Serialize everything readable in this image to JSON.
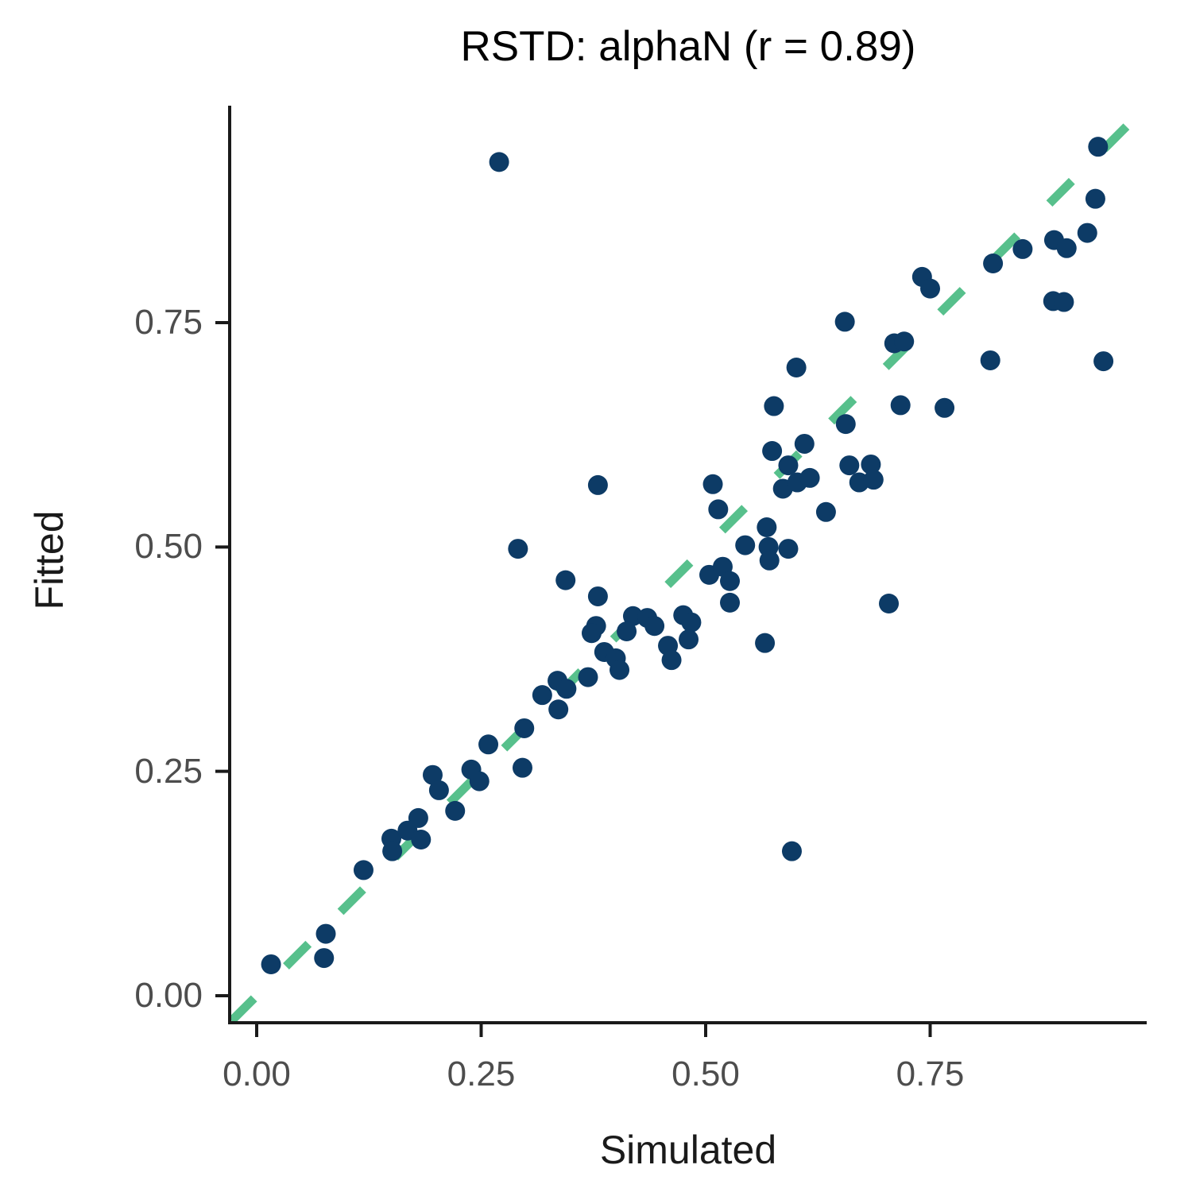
{
  "title": "RSTD: alphaN (r = 0.89)",
  "axes": {
    "x": {
      "label": "Simulated",
      "tick_labels": [
        "0.00",
        "0.25",
        "0.50",
        "0.75"
      ],
      "tick_values": [
        0,
        0.25,
        0.5,
        0.75
      ]
    },
    "y": {
      "label": "Fitted",
      "tick_labels": [
        "0.00",
        "0.25",
        "0.50",
        "0.75"
      ],
      "tick_values": [
        0,
        0.25,
        0.5,
        0.75
      ]
    }
  },
  "colors": {
    "point": "#0d3b66",
    "identity_line": "#57c08c",
    "axis": "#1a1a1a",
    "tick_text": "#4d4d4d",
    "background": "#ffffff"
  },
  "chart_data": {
    "type": "scatter",
    "title": "RSTD: alphaN (r = 0.89)",
    "xlabel": "Simulated",
    "ylabel": "Fitted",
    "r_value": 0.89,
    "xlim": [
      -0.03,
      0.99
    ],
    "ylim": [
      -0.03,
      0.99
    ],
    "grid": false,
    "legend": "none",
    "identity_line": {
      "style": "dashed",
      "from": [
        -0.028,
        -0.028
      ],
      "to": [
        0.978,
        0.978
      ]
    },
    "points": [
      [
        0.016,
        0.035
      ],
      [
        0.075,
        0.042
      ],
      [
        0.077,
        0.069
      ],
      [
        0.119,
        0.14
      ],
      [
        0.15,
        0.175
      ],
      [
        0.151,
        0.161
      ],
      [
        0.168,
        0.184
      ],
      [
        0.18,
        0.198
      ],
      [
        0.183,
        0.174
      ],
      [
        0.196,
        0.246
      ],
      [
        0.203,
        0.229
      ],
      [
        0.221,
        0.206
      ],
      [
        0.239,
        0.252
      ],
      [
        0.248,
        0.239
      ],
      [
        0.258,
        0.28
      ],
      [
        0.296,
        0.254
      ],
      [
        0.298,
        0.298
      ],
      [
        0.318,
        0.335
      ],
      [
        0.335,
        0.351
      ],
      [
        0.345,
        0.342
      ],
      [
        0.336,
        0.319
      ],
      [
        0.369,
        0.355
      ],
      [
        0.387,
        0.383
      ],
      [
        0.4,
        0.376
      ],
      [
        0.404,
        0.363
      ],
      [
        0.291,
        0.498
      ],
      [
        0.344,
        0.463
      ],
      [
        0.38,
        0.569
      ],
      [
        0.38,
        0.445
      ],
      [
        0.378,
        0.412
      ],
      [
        0.373,
        0.404
      ],
      [
        0.419,
        0.423
      ],
      [
        0.412,
        0.406
      ],
      [
        0.435,
        0.421
      ],
      [
        0.443,
        0.412
      ],
      [
        0.475,
        0.424
      ],
      [
        0.484,
        0.416
      ],
      [
        0.481,
        0.397
      ],
      [
        0.458,
        0.39
      ],
      [
        0.462,
        0.374
      ],
      [
        0.504,
        0.469
      ],
      [
        0.519,
        0.478
      ],
      [
        0.527,
        0.462
      ],
      [
        0.527,
        0.438
      ],
      [
        0.514,
        0.542
      ],
      [
        0.568,
        0.522
      ],
      [
        0.544,
        0.502
      ],
      [
        0.57,
        0.5
      ],
      [
        0.592,
        0.498
      ],
      [
        0.571,
        0.485
      ],
      [
        0.566,
        0.393
      ],
      [
        0.508,
        0.57
      ],
      [
        0.574,
        0.607
      ],
      [
        0.576,
        0.657
      ],
      [
        0.592,
        0.591
      ],
      [
        0.586,
        0.565
      ],
      [
        0.602,
        0.572
      ],
      [
        0.616,
        0.577
      ],
      [
        0.601,
        0.7
      ],
      [
        0.61,
        0.615
      ],
      [
        0.66,
        0.591
      ],
      [
        0.684,
        0.592
      ],
      [
        0.671,
        0.572
      ],
      [
        0.687,
        0.575
      ],
      [
        0.655,
        0.751
      ],
      [
        0.71,
        0.727
      ],
      [
        0.721,
        0.729
      ],
      [
        0.717,
        0.658
      ],
      [
        0.766,
        0.655
      ],
      [
        0.656,
        0.637
      ],
      [
        0.634,
        0.539
      ],
      [
        0.817,
        0.708
      ],
      [
        0.943,
        0.707
      ],
      [
        0.741,
        0.801
      ],
      [
        0.75,
        0.788
      ],
      [
        0.82,
        0.816
      ],
      [
        0.853,
        0.832
      ],
      [
        0.887,
        0.774
      ],
      [
        0.899,
        0.773
      ],
      [
        0.888,
        0.842
      ],
      [
        0.902,
        0.833
      ],
      [
        0.925,
        0.85
      ],
      [
        0.934,
        0.888
      ],
      [
        0.937,
        0.946
      ],
      [
        0.27,
        0.929
      ],
      [
        0.596,
        0.161
      ],
      [
        0.704,
        0.437
      ]
    ]
  }
}
